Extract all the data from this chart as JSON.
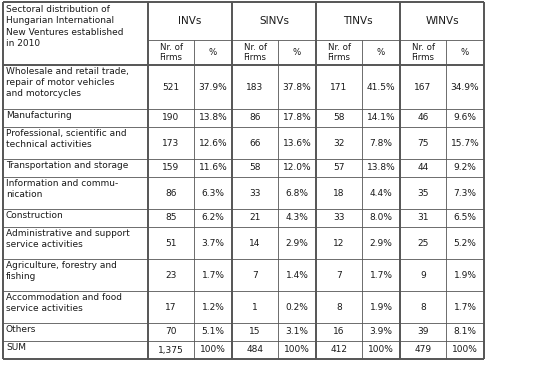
{
  "title_cell": "Sectoral distribution of\nHungarian International\nNew Ventures established\nin 2010",
  "col_groups": [
    "INVs",
    "SINVs",
    "TINVs",
    "WINVs"
  ],
  "rows": [
    {
      "label": "Wholesale and retail trade,\nrepair of motor vehicles\nand motorcycles",
      "values": [
        "521",
        "37.9%",
        "183",
        "37.8%",
        "171",
        "41.5%",
        "167",
        "34.9%"
      ],
      "nlines": 3
    },
    {
      "label": "Manufacturing",
      "values": [
        "190",
        "13.8%",
        "86",
        "17.8%",
        "58",
        "14.1%",
        "46",
        "9.6%"
      ],
      "nlines": 1
    },
    {
      "label": "Professional, scientific and\ntechnical activities",
      "values": [
        "173",
        "12.6%",
        "66",
        "13.6%",
        "32",
        "7.8%",
        "75",
        "15.7%"
      ],
      "nlines": 2
    },
    {
      "label": "Transportation and storage",
      "values": [
        "159",
        "11.6%",
        "58",
        "12.0%",
        "57",
        "13.8%",
        "44",
        "9.2%"
      ],
      "nlines": 1
    },
    {
      "label": "Information and commu-\nnication",
      "values": [
        "86",
        "6.3%",
        "33",
        "6.8%",
        "18",
        "4.4%",
        "35",
        "7.3%"
      ],
      "nlines": 2
    },
    {
      "label": "Construction",
      "values": [
        "85",
        "6.2%",
        "21",
        "4.3%",
        "33",
        "8.0%",
        "31",
        "6.5%"
      ],
      "nlines": 1
    },
    {
      "label": "Administrative and support\nservice activities",
      "values": [
        "51",
        "3.7%",
        "14",
        "2.9%",
        "12",
        "2.9%",
        "25",
        "5.2%"
      ],
      "nlines": 2
    },
    {
      "label": "Agriculture, forestry and\nfishing",
      "values": [
        "23",
        "1.7%",
        "7",
        "1.4%",
        "7",
        "1.7%",
        "9",
        "1.9%"
      ],
      "nlines": 2
    },
    {
      "label": "Accommodation and food\nservice activities",
      "values": [
        "17",
        "1.2%",
        "1",
        "0.2%",
        "8",
        "1.9%",
        "8",
        "1.7%"
      ],
      "nlines": 2
    },
    {
      "label": "Others",
      "values": [
        "70",
        "5.1%",
        "15",
        "3.1%",
        "16",
        "3.9%",
        "39",
        "8.1%"
      ],
      "nlines": 1
    },
    {
      "label": "SUM",
      "values": [
        "1,375",
        "100%",
        "484",
        "100%",
        "412",
        "100%",
        "479",
        "100%"
      ],
      "nlines": 1
    }
  ],
  "background_color": "#ffffff",
  "text_color": "#1a1a1a",
  "font_size": 6.5,
  "header_font_size": 7.5
}
